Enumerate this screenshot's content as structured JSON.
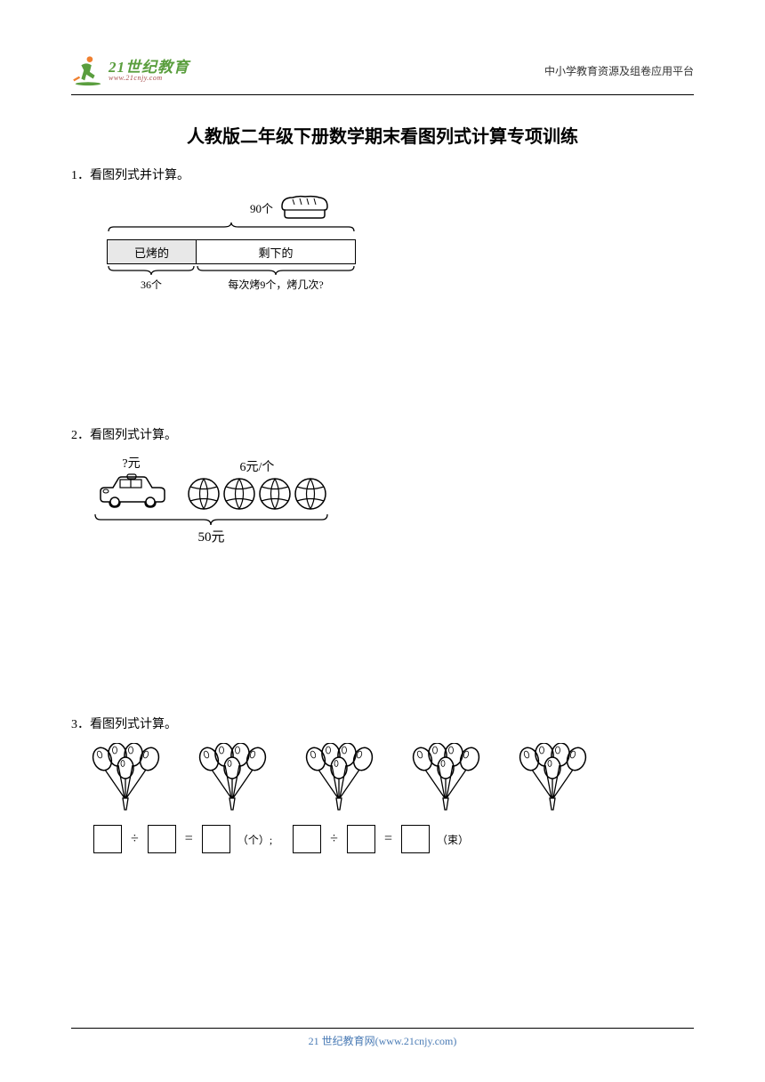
{
  "header": {
    "logo_title": "21世纪教育",
    "logo_sub": "www.21cnjy.com",
    "right_text": "中小学教育资源及组卷应用平台",
    "logo_color": "#5a9e3e",
    "accent_color": "#f08030"
  },
  "title": "人教版二年级下册数学期末看图列式计算专项训练",
  "q1": {
    "number": "1．",
    "text": "看图列式并计算。",
    "bread_label": "90个",
    "bar_left": "已烤的",
    "bar_right": "剩下的",
    "left_brace_label": "36个",
    "right_brace_label": "每次烤9个，烤几次?"
  },
  "q2": {
    "number": "2．",
    "text": "看图列式计算。",
    "car_label": "?元",
    "balls_label": "6元/个",
    "ball_count": 4,
    "total": "50元"
  },
  "q3": {
    "number": "3．",
    "text": "看图列式计算。",
    "bunch_count": 5,
    "balloons_per_bunch": 5,
    "op": "÷",
    "eq": "=",
    "unit1": "（个）;",
    "unit2": "（束）"
  },
  "footer": "21 世纪教育网(www.21cnjy.com)",
  "colors": {
    "text": "#000000",
    "footer_text": "#4a7bb5",
    "bar_fill": "#e8e8e8",
    "line": "#000000"
  }
}
